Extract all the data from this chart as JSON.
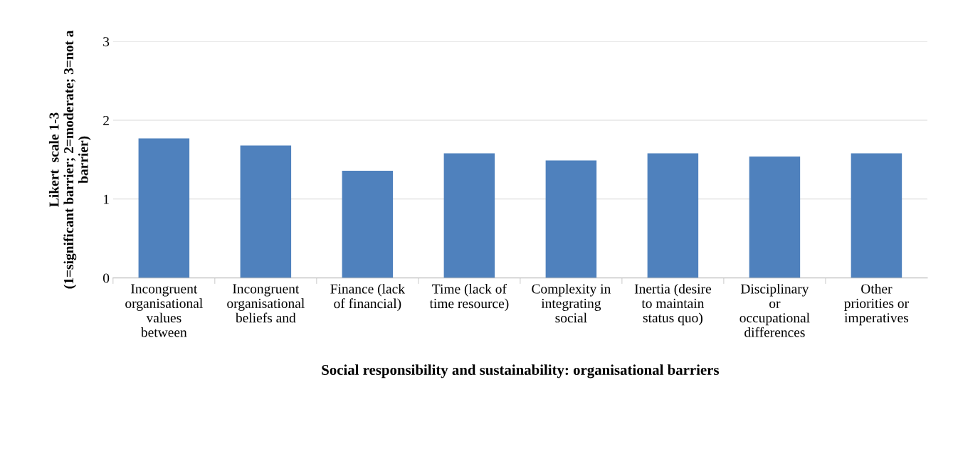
{
  "chart_data": {
    "type": "bar",
    "categories": [
      "Incongruent\norganisational\nvalues\nbetween",
      "Incongruent\norganisational\nbeliefs and",
      "Finance (lack\nof financial)",
      "Time (lack of\ntime resource)",
      "Complexity in\nintegrating\nsocial",
      "Inertia (desire\nto maintain\nstatus quo)",
      "Disciplinary\nor\noccupational\ndifferences",
      "Other\npriorities or\nimperatives"
    ],
    "values": [
      1.77,
      1.68,
      1.36,
      1.58,
      1.49,
      1.58,
      1.54,
      1.58
    ],
    "color": "#4f81bd",
    "xlabel": "Social responsibility and sustainability: organisational barriers",
    "ylabel": "Likert  scale 1-3\n(1=significant barrier; 2=moderate; 3=not a\nbarrier)",
    "ylim": [
      0,
      3
    ],
    "yticks": [
      0,
      1,
      2,
      3
    ],
    "grid": "y",
    "legend": false
  }
}
